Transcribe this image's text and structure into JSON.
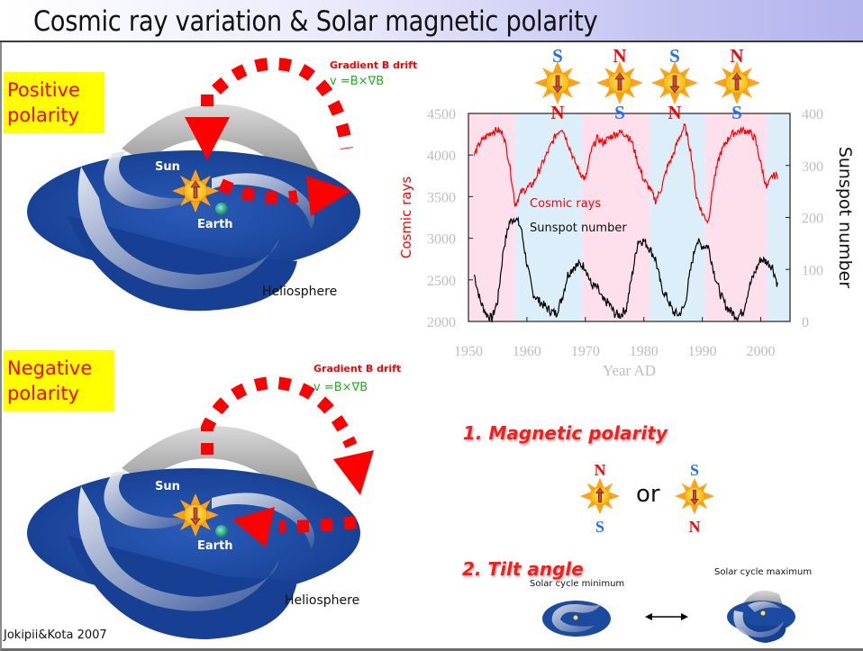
{
  "slide": {
    "title": "Cosmic ray variation & Solar magnetic polarity",
    "citation": "Jokipii&Kota 2007"
  },
  "panels": {
    "positive": {
      "label_line1": "Positive",
      "label_line2": "polarity",
      "drift_title": "Gradient B drift",
      "drift_eq": "v =B×∇B",
      "sun_label": "Sun",
      "earth_label": "Earth",
      "heliosphere_label": "Heliosphere",
      "sun_arrow": "up"
    },
    "negative": {
      "label_line1": "Negative",
      "label_line2": "polarity",
      "drift_title": "Gradient B drift",
      "drift_eq": "v =B×∇B",
      "sun_label": "Sun",
      "earth_label": "Earth",
      "heliosphere_label": "Heliosphere",
      "sun_arrow": "down"
    }
  },
  "polarity_suns": [
    {
      "top": "S",
      "bottom": "N",
      "arrow": "down"
    },
    {
      "top": "N",
      "bottom": "S",
      "arrow": "up"
    },
    {
      "top": "S",
      "bottom": "N",
      "arrow": "down"
    },
    {
      "top": "N",
      "bottom": "S",
      "arrow": "up"
    }
  ],
  "factors": {
    "magnetic_polarity": {
      "title": "1. Magnetic polarity",
      "option_a": {
        "top": "N",
        "bottom": "S",
        "arrow": "up"
      },
      "or_text": "or",
      "option_b": {
        "top": "S",
        "bottom": "N",
        "arrow": "down"
      }
    },
    "tilt_angle": {
      "title": "2. Tilt angle",
      "min_label": "Solar cycle minimum",
      "max_label": "Solar cycle maximum",
      "arrow": "double-arrow"
    }
  },
  "colors": {
    "red": "#ff0000",
    "blue_letter": "#1f6fff",
    "green_eq": "#22aa22",
    "pink_band": "#fde0ec",
    "blue_band": "#ddeefb",
    "label_bg": "#ffff00",
    "heliosphere_blue": "#1c4aa0",
    "axis_grey": "#bdbdbd"
  },
  "chart_data": {
    "type": "line",
    "title": "",
    "xlabel": "Year AD",
    "ylabel": "Cosmic rays",
    "ylabel_right": "Sunspot number",
    "xlim": [
      1950,
      2005
    ],
    "ylim": [
      2000,
      4500
    ],
    "ylim_right": [
      0,
      400
    ],
    "x_ticks": [
      1950,
      1960,
      1970,
      1980,
      1990,
      2000
    ],
    "y_ticks": [
      2000,
      2500,
      3000,
      3500,
      4000,
      4500
    ],
    "y_ticks_right": [
      0,
      100,
      200,
      300,
      400
    ],
    "grid": false,
    "legend": [
      "Cosmic rays",
      "Sunspot number"
    ],
    "legend_position": "inside-left-middle",
    "bands": [
      {
        "from": 1950,
        "to": 1958,
        "polarity": "positive",
        "color": "pink"
      },
      {
        "from": 1958,
        "to": 1969.5,
        "polarity": "negative",
        "color": "blue"
      },
      {
        "from": 1969.5,
        "to": 1981,
        "polarity": "positive",
        "color": "pink"
      },
      {
        "from": 1981,
        "to": 1990.5,
        "polarity": "negative",
        "color": "blue"
      },
      {
        "from": 1990.5,
        "to": 2001,
        "polarity": "positive",
        "color": "pink"
      },
      {
        "from": 2001,
        "to": 2005,
        "polarity": "negative",
        "color": "blue"
      }
    ],
    "x": [
      1951,
      1952,
      1953,
      1954,
      1955,
      1956,
      1957,
      1958,
      1959,
      1960,
      1961,
      1962,
      1963,
      1964,
      1965,
      1966,
      1967,
      1968,
      1969,
      1970,
      1971,
      1972,
      1973,
      1974,
      1975,
      1976,
      1977,
      1978,
      1979,
      1980,
      1981,
      1982,
      1983,
      1984,
      1985,
      1986,
      1987,
      1988,
      1989,
      1990,
      1991,
      1992,
      1993,
      1994,
      1995,
      1996,
      1997,
      1998,
      1999,
      2000,
      2001,
      2002,
      2003
    ],
    "series": [
      {
        "name": "Cosmic rays",
        "axis": "left",
        "color": "#ff0000",
        "values": [
          4000,
          4150,
          4220,
          4280,
          4300,
          4250,
          3900,
          3400,
          3550,
          3600,
          3650,
          3800,
          3950,
          4100,
          4250,
          4330,
          4150,
          3950,
          3800,
          3700,
          4050,
          4200,
          4150,
          4200,
          4250,
          4270,
          4250,
          4150,
          3900,
          3700,
          3600,
          3450,
          3600,
          3850,
          4000,
          4200,
          4350,
          4050,
          3500,
          3300,
          3200,
          3700,
          4000,
          4150,
          4250,
          4280,
          4300,
          4280,
          4200,
          3900,
          3600,
          3750,
          3750
        ]
      },
      {
        "name": "Sunspot number",
        "axis": "right",
        "color": "#000000",
        "values": [
          90,
          40,
          15,
          5,
          40,
          140,
          190,
          200,
          180,
          110,
          55,
          40,
          30,
          20,
          15,
          45,
          90,
          105,
          110,
          105,
          70,
          65,
          40,
          35,
          15,
          12,
          25,
          90,
          155,
          155,
          140,
          120,
          65,
          45,
          18,
          13,
          30,
          100,
          155,
          145,
          145,
          95,
          55,
          30,
          18,
          9,
          20,
          65,
          95,
          120,
          115,
          105,
          65
        ]
      }
    ],
    "annotations": [
      "Cosmic rays",
      "Sunspot number"
    ]
  }
}
